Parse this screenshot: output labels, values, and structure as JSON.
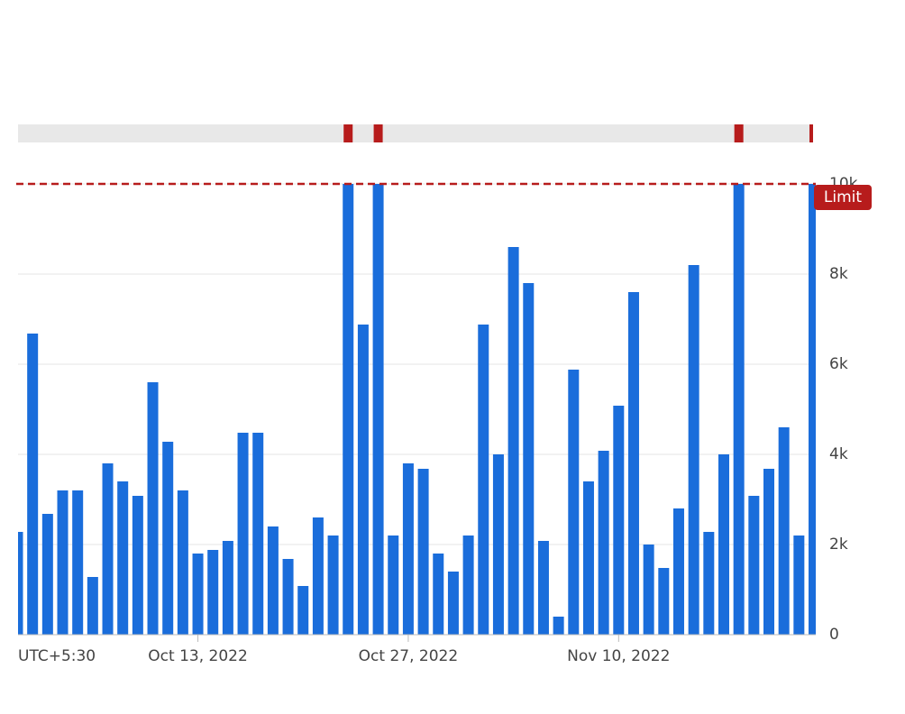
{
  "chart_data": {
    "type": "bar",
    "timezone_label": "UTC+5:30",
    "categories": [
      null,
      null,
      null,
      null,
      null,
      null,
      null,
      null,
      null,
      null,
      null,
      null,
      "Oct 13, 2022",
      null,
      null,
      null,
      null,
      null,
      null,
      null,
      null,
      null,
      null,
      null,
      null,
      null,
      "Oct 27, 2022",
      null,
      null,
      null,
      null,
      null,
      null,
      null,
      null,
      null,
      null,
      null,
      null,
      null,
      "Nov 10, 2022",
      null,
      null,
      null,
      null,
      null,
      null,
      null,
      null,
      null,
      null,
      null,
      null,
      null
    ],
    "values": [
      2280,
      6680,
      2680,
      3200,
      3200,
      1280,
      3800,
      3400,
      3080,
      5600,
      4280,
      3200,
      1800,
      1880,
      2080,
      4480,
      4480,
      2400,
      1680,
      1080,
      2600,
      2200,
      10000,
      6880,
      10000,
      2200,
      3800,
      3680,
      1800,
      1400,
      2200,
      6880,
      4000,
      8600,
      7800,
      2080,
      400,
      5880,
      3400,
      4080,
      5080,
      7600,
      2000,
      1480,
      2800,
      8200,
      2280,
      4000,
      10000,
      3080,
      3680,
      4600,
      2200,
      10000
    ],
    "color": "#1a6ddb",
    "limit": {
      "value": 10000,
      "label": "Limit",
      "color": "#b71c1c"
    },
    "ylim": [
      0,
      10000
    ],
    "yticks": [
      {
        "value": 0,
        "label": "0"
      },
      {
        "value": 2000,
        "label": "2k"
      },
      {
        "value": 4000,
        "label": "4k"
      },
      {
        "value": 6000,
        "label": "6k"
      },
      {
        "value": 8000,
        "label": "8k"
      },
      {
        "value": 10000,
        "label": "10k"
      }
    ],
    "grid": true
  }
}
